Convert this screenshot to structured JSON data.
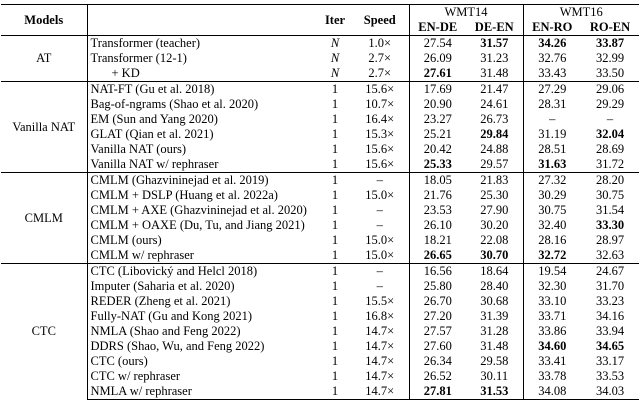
{
  "header": {
    "models": "Models",
    "iter": "Iter",
    "speed": "Speed",
    "groups": [
      {
        "name": "WMT14",
        "columns": [
          "EN-DE",
          "DE-EN"
        ]
      },
      {
        "name": "WMT16",
        "columns": [
          "EN-RO",
          "RO-EN"
        ]
      }
    ]
  },
  "sections": [
    {
      "label": "AT",
      "rows": [
        {
          "model": "Transformer (teacher)",
          "iter": "N",
          "iter_italic": true,
          "speed": "1.0×",
          "scores": [
            "27.54",
            "31.57",
            "34.26",
            "33.87"
          ],
          "bold": [
            false,
            true,
            true,
            true
          ]
        },
        {
          "model": "Transformer (12-1)",
          "iter": "N",
          "iter_italic": true,
          "speed": "2.7×",
          "scores": [
            "26.09",
            "31.23",
            "32.76",
            "32.99"
          ],
          "bold": [
            false,
            false,
            false,
            false
          ]
        },
        {
          "model": "+ KD",
          "iter": "N",
          "iter_italic": true,
          "speed": "2.7×",
          "scores": [
            "27.61",
            "31.48",
            "33.43",
            "33.50"
          ],
          "bold": [
            true,
            false,
            false,
            false
          ]
        }
      ]
    },
    {
      "label": "Vanilla NAT",
      "rows": [
        {
          "model": "NAT-FT (Gu et al. 2018)",
          "iter": "1",
          "speed": "15.6×",
          "scores": [
            "17.69",
            "21.47",
            "27.29",
            "29.06"
          ],
          "bold": [
            false,
            false,
            false,
            false
          ]
        },
        {
          "model": "Bag-of-ngrams (Shao et al. 2020)",
          "iter": "1",
          "speed": "10.7×",
          "scores": [
            "20.90",
            "24.61",
            "28.31",
            "29.29"
          ],
          "bold": [
            false,
            false,
            false,
            false
          ]
        },
        {
          "model": "EM (Sun and Yang 2020)",
          "iter": "1",
          "speed": "16.4×",
          "scores": [
            "23.27",
            "26.73",
            "–",
            "–"
          ],
          "bold": [
            false,
            false,
            false,
            false
          ]
        },
        {
          "model": "GLAT (Qian et al. 2021)",
          "iter": "1",
          "speed": "15.3×",
          "scores": [
            "25.21",
            "29.84",
            "31.19",
            "32.04"
          ],
          "bold": [
            false,
            true,
            false,
            true
          ]
        },
        {
          "model": "Vanilla NAT (ours)",
          "iter": "1",
          "speed": "15.6×",
          "scores": [
            "20.42",
            "24.88",
            "28.51",
            "28.69"
          ],
          "bold": [
            false,
            false,
            false,
            false
          ]
        },
        {
          "model": "Vanilla NAT w/ rephraser",
          "iter": "1",
          "speed": "15.6×",
          "scores": [
            "25.33",
            "29.57",
            "31.63",
            "31.72"
          ],
          "bold": [
            true,
            false,
            true,
            false
          ]
        }
      ]
    },
    {
      "label": "CMLM",
      "rows": [
        {
          "model": "CMLM (Ghazvininejad et al. 2019)",
          "iter": "1",
          "speed": "–",
          "scores": [
            "18.05",
            "21.83",
            "27.32",
            "28.20"
          ],
          "bold": [
            false,
            false,
            false,
            false
          ]
        },
        {
          "model": "CMLM + DSLP (Huang et al. 2022a)",
          "iter": "1",
          "speed": "15.0×",
          "scores": [
            "21.76",
            "25.30",
            "30.29",
            "30.75"
          ],
          "bold": [
            false,
            false,
            false,
            false
          ]
        },
        {
          "model": "CMLM + AXE (Ghazvininejad et al. 2020)",
          "iter": "1",
          "speed": "–",
          "scores": [
            "23.53",
            "27.90",
            "30.75",
            "31.54"
          ],
          "bold": [
            false,
            false,
            false,
            false
          ]
        },
        {
          "model": "CMLM + OAXE (Du, Tu, and Jiang 2021)",
          "iter": "1",
          "speed": "–",
          "scores": [
            "26.10",
            "30.20",
            "32.40",
            "33.30"
          ],
          "bold": [
            false,
            false,
            false,
            true
          ]
        },
        {
          "model": "CMLM (ours)",
          "iter": "1",
          "speed": "15.0×",
          "scores": [
            "18.21",
            "22.08",
            "28.16",
            "28.97"
          ],
          "bold": [
            false,
            false,
            false,
            false
          ]
        },
        {
          "model": "CMLM w/ rephraser",
          "iter": "1",
          "speed": "15.0×",
          "scores": [
            "26.65",
            "30.70",
            "32.72",
            "32.63"
          ],
          "bold": [
            true,
            true,
            true,
            false
          ]
        }
      ]
    },
    {
      "label": "CTC",
      "rows": [
        {
          "model": "CTC (Libovický and Helcl 2018)",
          "iter": "1",
          "speed": "–",
          "scores": [
            "16.56",
            "18.64",
            "19.54",
            "24.67"
          ],
          "bold": [
            false,
            false,
            false,
            false
          ]
        },
        {
          "model": "Imputer (Saharia et al. 2020)",
          "iter": "1",
          "speed": "–",
          "scores": [
            "25.80",
            "28.40",
            "32.30",
            "31.70"
          ],
          "bold": [
            false,
            false,
            false,
            false
          ]
        },
        {
          "model": "REDER (Zheng et al. 2021)",
          "iter": "1",
          "speed": "15.5×",
          "scores": [
            "26.70",
            "30.68",
            "33.10",
            "33.23"
          ],
          "bold": [
            false,
            false,
            false,
            false
          ]
        },
        {
          "model": "Fully-NAT (Gu and Kong 2021)",
          "iter": "1",
          "speed": "16.8×",
          "scores": [
            "27.20",
            "31.39",
            "33.71",
            "34.16"
          ],
          "bold": [
            false,
            false,
            false,
            false
          ]
        },
        {
          "model": "NMLA (Shao and Feng 2022)",
          "iter": "1",
          "speed": "14.7×",
          "scores": [
            "27.57",
            "31.28",
            "33.86",
            "33.94"
          ],
          "bold": [
            false,
            false,
            false,
            false
          ]
        },
        {
          "model": "DDRS (Shao, Wu, and Feng 2022)",
          "iter": "1",
          "speed": "14.7×",
          "scores": [
            "27.60",
            "31.48",
            "34.60",
            "34.65"
          ],
          "bold": [
            false,
            false,
            true,
            true
          ]
        },
        {
          "model": "CTC (ours)",
          "iter": "1",
          "speed": "14.7×",
          "scores": [
            "26.34",
            "29.58",
            "33.41",
            "33.17"
          ],
          "bold": [
            false,
            false,
            false,
            false
          ]
        },
        {
          "model": "CTC w/ rephraser",
          "iter": "1",
          "speed": "14.7×",
          "scores": [
            "26.52",
            "30.11",
            "33.78",
            "33.53"
          ],
          "bold": [
            false,
            false,
            false,
            false
          ]
        },
        {
          "model": "NMLA w/ rephraser",
          "iter": "1",
          "speed": "14.7×",
          "scores": [
            "27.81",
            "31.53",
            "34.08",
            "34.03"
          ],
          "bold": [
            true,
            true,
            false,
            false
          ]
        }
      ]
    }
  ]
}
